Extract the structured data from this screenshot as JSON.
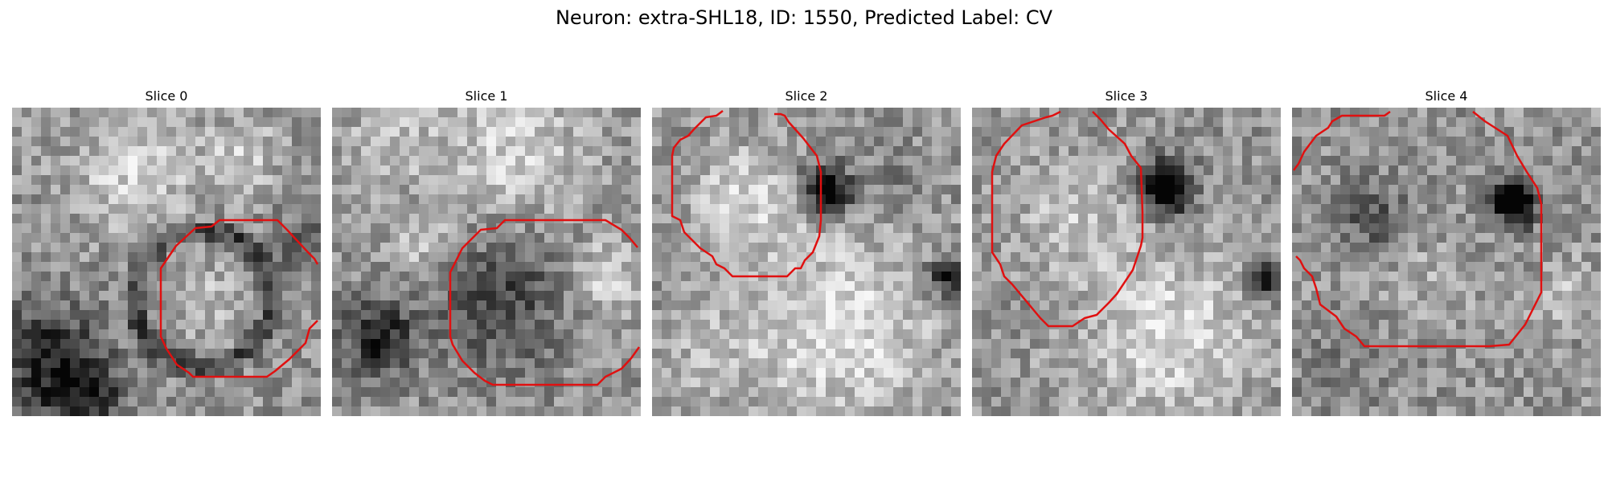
{
  "figure": {
    "title": "Neuron: extra-SHL18, ID: 1550, Predicted Label: CV"
  },
  "panels": [
    {
      "title": "Slice 0",
      "contour_color": "#e01010"
    },
    {
      "title": "Slice 1",
      "contour_color": "#e01010"
    },
    {
      "title": "Slice 2",
      "contour_color": "#e01010"
    },
    {
      "title": "Slice 3",
      "contour_color": "#e01010"
    },
    {
      "title": "Slice 4",
      "contour_color": "#e01010"
    }
  ]
}
